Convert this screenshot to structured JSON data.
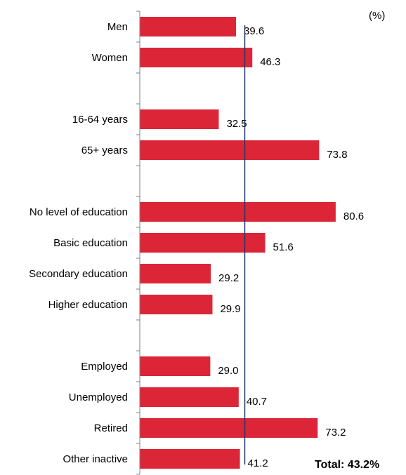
{
  "unit_label": "(%)",
  "total_label": "Total: 43.2%",
  "colors": {
    "bar": "#dc2638",
    "axis": "#808080",
    "total_line": "#1f3864"
  },
  "chart_data": {
    "type": "bar",
    "orientation": "horizontal",
    "categories": [
      "Men",
      "Women",
      "",
      "16-64 years",
      "65+ years",
      "",
      "No level of education",
      "Basic education",
      "Secondary education",
      "Higher education",
      "",
      "Employed",
      "Unemployed",
      "Retired",
      "Other inactive"
    ],
    "values": [
      39.6,
      46.3,
      null,
      32.5,
      73.8,
      null,
      80.6,
      51.6,
      29.2,
      29.9,
      null,
      29.0,
      40.7,
      73.2,
      41.2
    ],
    "value_labels": [
      "39.6",
      "46.3",
      "",
      "32.5",
      "73.8",
      "",
      "80.6",
      "51.6",
      "29.2",
      "29.9",
      "",
      "29.0",
      "40.7",
      "73.2",
      "41.2"
    ],
    "reference_line": {
      "value": 43.2
    },
    "xlim": [
      0,
      100
    ],
    "grid": false,
    "legend": "none"
  }
}
